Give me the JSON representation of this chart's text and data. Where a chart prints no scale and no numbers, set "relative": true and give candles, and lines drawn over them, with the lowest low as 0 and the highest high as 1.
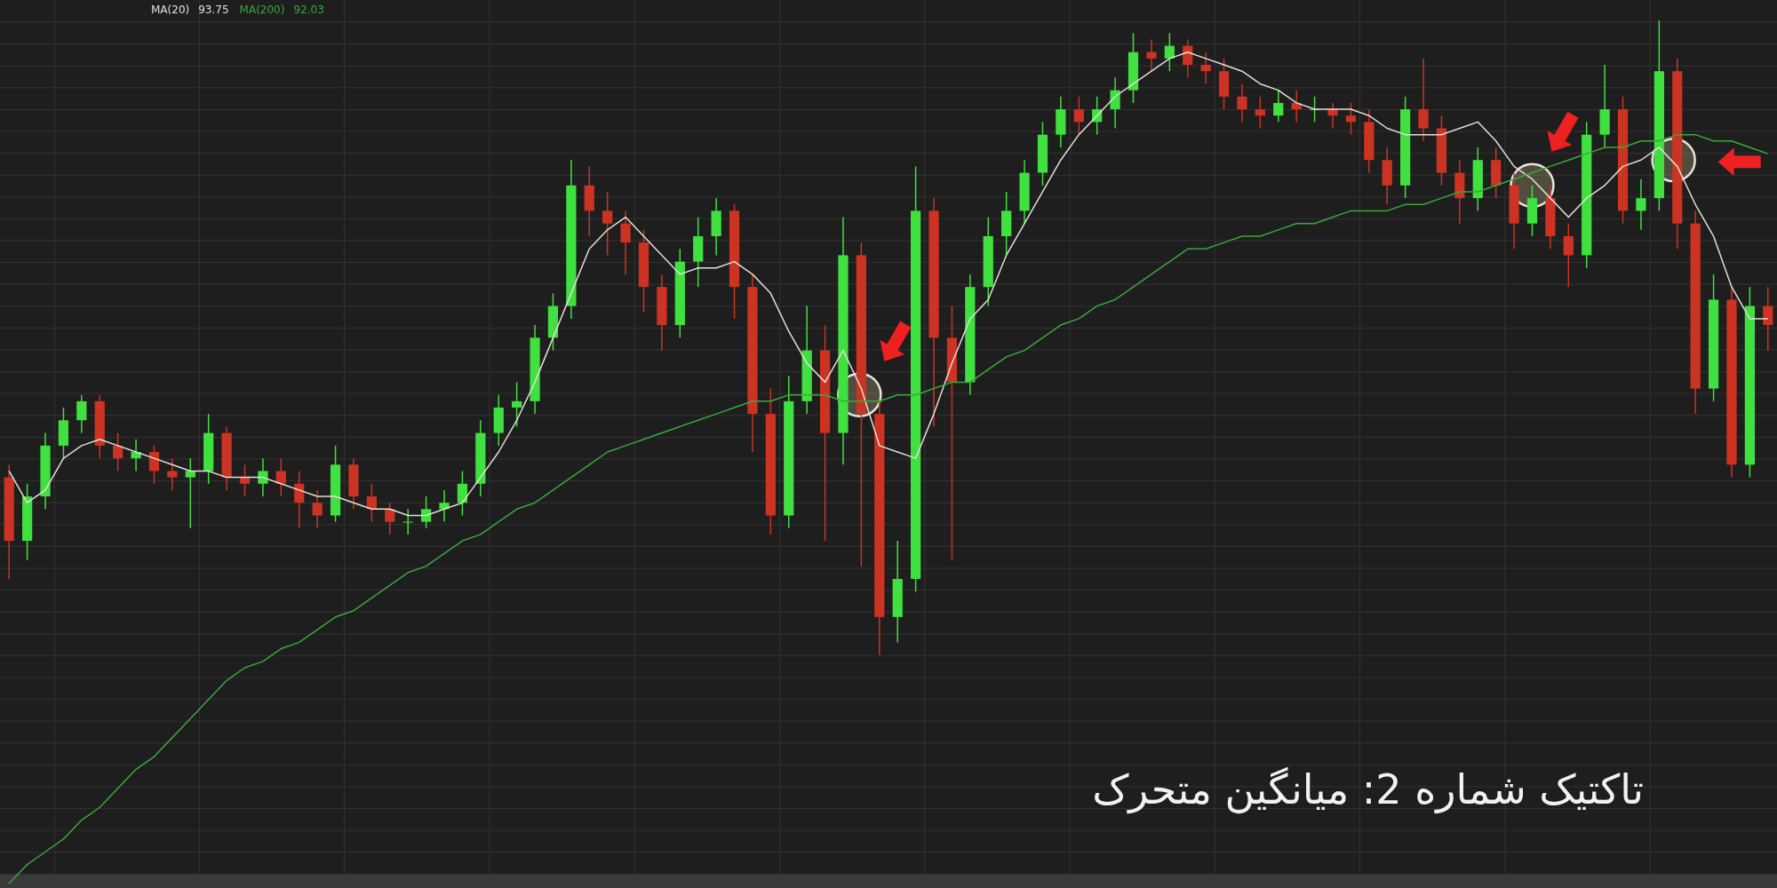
{
  "chart_data": {
    "type": "candlestick",
    "title": "تاکتیک شماره 2: میانگین متحرک",
    "relative": true,
    "grid": true,
    "legend": "top left",
    "annotations": [
      "93.75",
      "92.03"
    ],
    "categories": [
      null,
      null,
      null,
      null,
      null,
      null,
      null,
      null,
      null,
      null,
      null,
      null,
      null,
      null,
      null,
      null,
      null,
      null,
      null,
      null,
      null,
      null,
      null,
      null,
      null,
      null,
      null,
      null,
      null,
      null,
      null,
      null,
      null,
      null,
      null,
      null,
      null,
      null,
      null,
      null,
      null,
      null,
      null,
      null,
      null,
      null,
      null,
      null,
      null,
      null,
      null,
      null,
      null,
      null,
      null,
      null,
      null,
      null,
      null,
      null,
      null,
      null,
      null,
      null,
      null,
      null,
      null,
      null,
      null,
      null,
      null,
      null,
      null,
      null,
      null,
      null,
      null,
      null,
      null,
      null,
      null,
      null,
      null,
      null,
      null,
      null,
      null,
      null,
      null,
      null,
      null,
      null,
      null,
      null,
      null,
      null,
      null,
      null
    ],
    "ohlc": [
      [
        0.28,
        0.3,
        0.12,
        0.18
      ],
      [
        0.18,
        0.27,
        0.15,
        0.25
      ],
      [
        0.25,
        0.35,
        0.23,
        0.33
      ],
      [
        0.33,
        0.39,
        0.31,
        0.37
      ],
      [
        0.37,
        0.41,
        0.35,
        0.4
      ],
      [
        0.4,
        0.41,
        0.31,
        0.33
      ],
      [
        0.33,
        0.35,
        0.29,
        0.31
      ],
      [
        0.31,
        0.34,
        0.29,
        0.32
      ],
      [
        0.32,
        0.33,
        0.27,
        0.29
      ],
      [
        0.29,
        0.31,
        0.26,
        0.28
      ],
      [
        0.28,
        0.31,
        0.2,
        0.29
      ],
      [
        0.29,
        0.38,
        0.27,
        0.35
      ],
      [
        0.35,
        0.36,
        0.26,
        0.28
      ],
      [
        0.28,
        0.3,
        0.25,
        0.27
      ],
      [
        0.27,
        0.31,
        0.25,
        0.29
      ],
      [
        0.29,
        0.31,
        0.25,
        0.27
      ],
      [
        0.27,
        0.29,
        0.2,
        0.24
      ],
      [
        0.24,
        0.26,
        0.2,
        0.22
      ],
      [
        0.22,
        0.33,
        0.21,
        0.3
      ],
      [
        0.3,
        0.31,
        0.23,
        0.25
      ],
      [
        0.25,
        0.27,
        0.21,
        0.23
      ],
      [
        0.23,
        0.24,
        0.19,
        0.21
      ],
      [
        0.21,
        0.23,
        0.19,
        0.21
      ],
      [
        0.21,
        0.25,
        0.2,
        0.23
      ],
      [
        0.23,
        0.26,
        0.21,
        0.24
      ],
      [
        0.24,
        0.29,
        0.22,
        0.27
      ],
      [
        0.27,
        0.37,
        0.25,
        0.35
      ],
      [
        0.35,
        0.41,
        0.33,
        0.39
      ],
      [
        0.39,
        0.43,
        0.36,
        0.4
      ],
      [
        0.4,
        0.52,
        0.38,
        0.5
      ],
      [
        0.5,
        0.57,
        0.48,
        0.55
      ],
      [
        0.55,
        0.78,
        0.53,
        0.74
      ],
      [
        0.74,
        0.77,
        0.66,
        0.7
      ],
      [
        0.7,
        0.73,
        0.63,
        0.68
      ],
      [
        0.68,
        0.7,
        0.6,
        0.65
      ],
      [
        0.65,
        0.67,
        0.54,
        0.58
      ],
      [
        0.58,
        0.6,
        0.48,
        0.52
      ],
      [
        0.52,
        0.64,
        0.5,
        0.62
      ],
      [
        0.62,
        0.69,
        0.58,
        0.66
      ],
      [
        0.66,
        0.72,
        0.63,
        0.7
      ],
      [
        0.7,
        0.71,
        0.53,
        0.58
      ],
      [
        0.58,
        0.6,
        0.32,
        0.38
      ],
      [
        0.38,
        0.42,
        0.19,
        0.22
      ],
      [
        0.22,
        0.44,
        0.2,
        0.4
      ],
      [
        0.4,
        0.55,
        0.38,
        0.48
      ],
      [
        0.48,
        0.52,
        0.18,
        0.35
      ],
      [
        0.35,
        0.69,
        0.3,
        0.63
      ],
      [
        0.63,
        0.65,
        0.14,
        0.38
      ],
      [
        0.38,
        0.4,
        0.0,
        0.06
      ],
      [
        0.06,
        0.18,
        0.02,
        0.12
      ],
      [
        0.12,
        0.77,
        0.1,
        0.7
      ],
      [
        0.7,
        0.72,
        0.36,
        0.5
      ],
      [
        0.5,
        0.55,
        0.15,
        0.43
      ],
      [
        0.43,
        0.6,
        0.41,
        0.58
      ],
      [
        0.58,
        0.69,
        0.55,
        0.66
      ],
      [
        0.66,
        0.73,
        0.63,
        0.7
      ],
      [
        0.7,
        0.78,
        0.68,
        0.76
      ],
      [
        0.76,
        0.84,
        0.74,
        0.82
      ],
      [
        0.82,
        0.88,
        0.8,
        0.86
      ],
      [
        0.86,
        0.88,
        0.82,
        0.84
      ],
      [
        0.84,
        0.88,
        0.82,
        0.86
      ],
      [
        0.86,
        0.91,
        0.83,
        0.89
      ],
      [
        0.89,
        0.98,
        0.87,
        0.95
      ],
      [
        0.95,
        0.97,
        0.92,
        0.94
      ],
      [
        0.94,
        0.98,
        0.92,
        0.96
      ],
      [
        0.96,
        0.97,
        0.91,
        0.93
      ],
      [
        0.93,
        0.95,
        0.9,
        0.92
      ],
      [
        0.92,
        0.94,
        0.86,
        0.88
      ],
      [
        0.88,
        0.9,
        0.84,
        0.86
      ],
      [
        0.86,
        0.88,
        0.83,
        0.85
      ],
      [
        0.85,
        0.89,
        0.84,
        0.87
      ],
      [
        0.87,
        0.89,
        0.84,
        0.86
      ],
      [
        0.86,
        0.88,
        0.84,
        0.86
      ],
      [
        0.86,
        0.87,
        0.83,
        0.85
      ],
      [
        0.85,
        0.87,
        0.82,
        0.84
      ],
      [
        0.84,
        0.86,
        0.76,
        0.78
      ],
      [
        0.78,
        0.8,
        0.71,
        0.74
      ],
      [
        0.74,
        0.88,
        0.72,
        0.86
      ],
      [
        0.86,
        0.94,
        0.81,
        0.83
      ],
      [
        0.83,
        0.85,
        0.74,
        0.76
      ],
      [
        0.76,
        0.78,
        0.68,
        0.72
      ],
      [
        0.72,
        0.8,
        0.7,
        0.78
      ],
      [
        0.78,
        0.8,
        0.72,
        0.74
      ],
      [
        0.74,
        0.76,
        0.64,
        0.68
      ],
      [
        0.68,
        0.74,
        0.66,
        0.72
      ],
      [
        0.72,
        0.74,
        0.64,
        0.66
      ],
      [
        0.66,
        0.68,
        0.58,
        0.63
      ],
      [
        0.63,
        0.84,
        0.61,
        0.82
      ],
      [
        0.82,
        0.93,
        0.8,
        0.86
      ],
      [
        0.86,
        0.88,
        0.68,
        0.7
      ],
      [
        0.7,
        0.75,
        0.67,
        0.72
      ],
      [
        0.72,
        1.0,
        0.7,
        0.92
      ],
      [
        0.92,
        0.94,
        0.64,
        0.68
      ],
      [
        0.68,
        0.7,
        0.38,
        0.42
      ],
      [
        0.42,
        0.6,
        0.4,
        0.56
      ],
      [
        0.56,
        0.58,
        0.28,
        0.3
      ],
      [
        0.3,
        0.58,
        0.28,
        0.55
      ],
      [
        0.55,
        0.58,
        0.48,
        0.52
      ]
    ],
    "series": [
      {
        "name": "MA(20)",
        "type": "line",
        "color": "#e4dfd8",
        "values": [
          0.29,
          0.24,
          0.26,
          0.31,
          0.33,
          0.34,
          0.33,
          0.32,
          0.31,
          0.3,
          0.29,
          0.29,
          0.28,
          0.28,
          0.28,
          0.27,
          0.26,
          0.25,
          0.25,
          0.24,
          0.23,
          0.23,
          0.22,
          0.22,
          0.23,
          0.24,
          0.28,
          0.32,
          0.37,
          0.43,
          0.5,
          0.57,
          0.64,
          0.67,
          0.69,
          0.66,
          0.63,
          0.6,
          0.61,
          0.61,
          0.62,
          0.6,
          0.57,
          0.51,
          0.46,
          0.43,
          0.48,
          0.42,
          0.33,
          0.32,
          0.31,
          0.38,
          0.46,
          0.53,
          0.56,
          0.63,
          0.68,
          0.73,
          0.78,
          0.82,
          0.85,
          0.88,
          0.9,
          0.92,
          0.94,
          0.95,
          0.94,
          0.93,
          0.92,
          0.9,
          0.89,
          0.87,
          0.86,
          0.86,
          0.86,
          0.85,
          0.83,
          0.82,
          0.82,
          0.82,
          0.83,
          0.84,
          0.81,
          0.77,
          0.75,
          0.72,
          0.69,
          0.72,
          0.74,
          0.77,
          0.78,
          0.8,
          0.77,
          0.71,
          0.66,
          0.58,
          0.53,
          0.53
        ]
      },
      {
        "name": "MA(200)",
        "type": "line",
        "color": "#3aa83a",
        "values": [
          -0.36,
          -0.33,
          -0.31,
          -0.29,
          -0.26,
          -0.24,
          -0.21,
          -0.18,
          -0.16,
          -0.13,
          -0.1,
          -0.07,
          -0.04,
          -0.02,
          -0.01,
          0.01,
          0.02,
          0.04,
          0.06,
          0.07,
          0.09,
          0.11,
          0.13,
          0.14,
          0.16,
          0.18,
          0.19,
          0.21,
          0.23,
          0.24,
          0.26,
          0.28,
          0.3,
          0.32,
          0.33,
          0.34,
          0.35,
          0.36,
          0.37,
          0.38,
          0.39,
          0.4,
          0.4,
          0.41,
          0.41,
          0.41,
          0.4,
          0.4,
          0.4,
          0.41,
          0.41,
          0.42,
          0.43,
          0.43,
          0.45,
          0.47,
          0.48,
          0.5,
          0.52,
          0.53,
          0.55,
          0.56,
          0.58,
          0.6,
          0.62,
          0.64,
          0.64,
          0.65,
          0.66,
          0.66,
          0.67,
          0.68,
          0.68,
          0.69,
          0.7,
          0.7,
          0.7,
          0.71,
          0.71,
          0.72,
          0.73,
          0.73,
          0.74,
          0.75,
          0.76,
          0.77,
          0.78,
          0.79,
          0.8,
          0.8,
          0.81,
          0.81,
          0.82,
          0.82,
          0.81,
          0.81,
          0.8,
          0.79
        ]
      }
    ]
  }
}
